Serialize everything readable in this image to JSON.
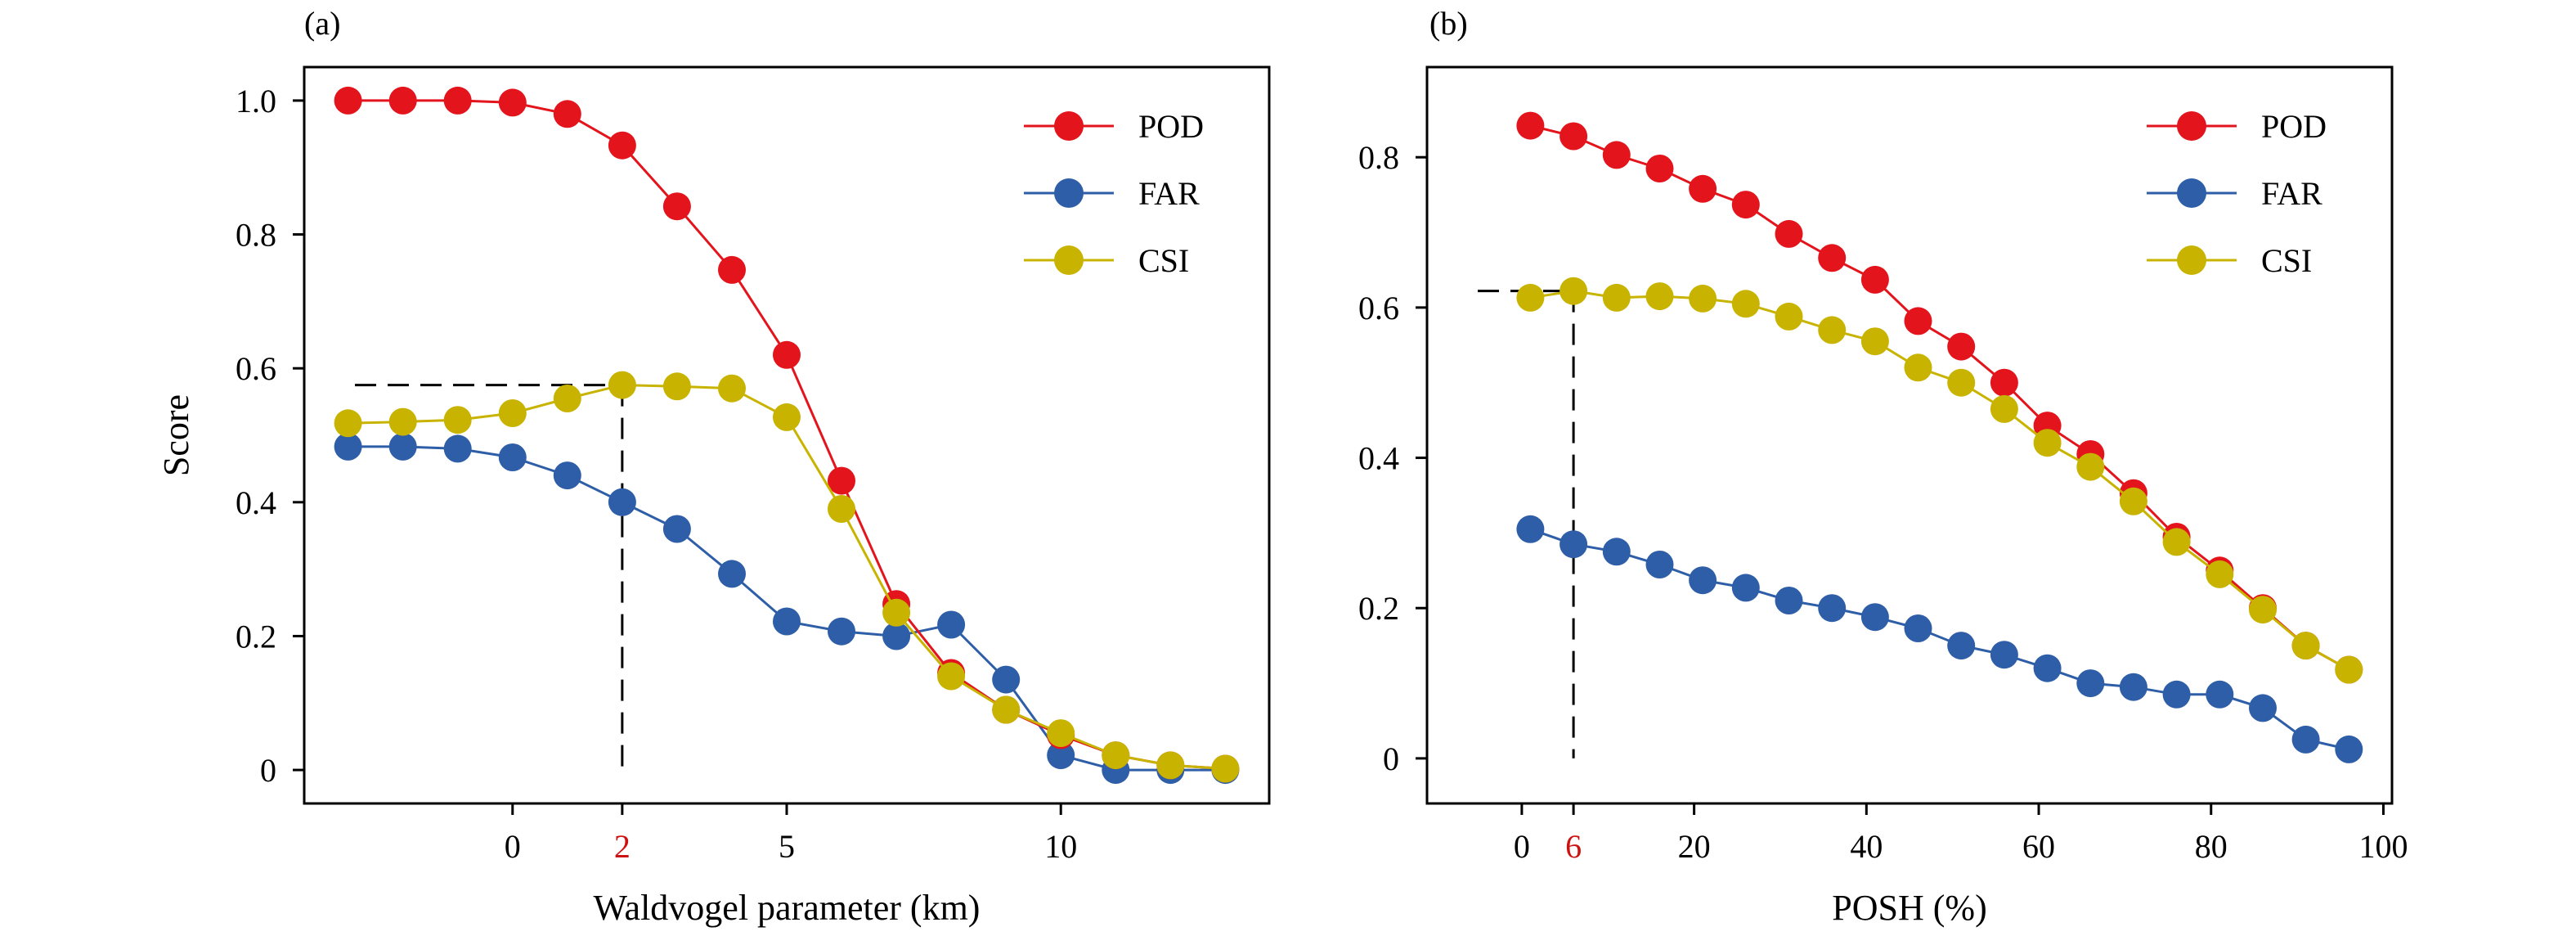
{
  "chart_data": [
    {
      "type": "line",
      "panel_label": "(a)",
      "xlabel": "Waldvogel parameter (km)",
      "ylabel": "Score",
      "xlim": [
        -3.8,
        13.8
      ],
      "ylim": [
        -0.05,
        1.05
      ],
      "xticks": [
        0,
        2,
        5,
        10
      ],
      "xtick_labels": [
        "0",
        "2",
        "5",
        "10"
      ],
      "highlight_xtick": "2",
      "yticks": [
        0,
        0.2,
        0.4,
        0.6,
        0.8,
        1.0
      ],
      "ytick_labels": [
        "0",
        "0.2",
        "0.4",
        "0.6",
        "0.8",
        "1.0"
      ],
      "legend_position": "top-right",
      "x": [
        -3,
        -2,
        -1,
        0,
        1,
        2,
        3,
        4,
        5,
        6,
        7,
        8,
        9,
        10,
        11,
        12,
        13
      ],
      "series": [
        {
          "name": "POD",
          "color": "#e3141c",
          "values": [
            1.0,
            1.0,
            1.0,
            0.997,
            0.98,
            0.933,
            0.842,
            0.747,
            0.62,
            0.432,
            0.248,
            0.145,
            0.09,
            0.052,
            0.022,
            0.007,
            0.002
          ]
        },
        {
          "name": "FAR",
          "color": "#2e5ea8",
          "values": [
            0.483,
            0.483,
            0.48,
            0.467,
            0.44,
            0.4,
            0.36,
            0.293,
            0.222,
            0.207,
            0.2,
            0.217,
            0.135,
            0.022,
            0.0,
            0.0,
            0.0
          ]
        },
        {
          "name": "CSI",
          "color": "#c8b400",
          "values": [
            0.518,
            0.52,
            0.523,
            0.533,
            0.555,
            0.575,
            0.573,
            0.57,
            0.527,
            0.39,
            0.235,
            0.14,
            0.09,
            0.055,
            0.022,
            0.007,
            0.002
          ]
        }
      ],
      "reference": {
        "x": 2,
        "y": 0.575
      }
    },
    {
      "type": "line",
      "panel_label": "(b)",
      "xlabel": "POSH (%)",
      "ylabel": "",
      "xlim": [
        -11,
        101
      ],
      "ylim": [
        -0.06,
        0.92
      ],
      "xticks": [
        0,
        6,
        20,
        40,
        60,
        80,
        100
      ],
      "xtick_labels": [
        "0",
        "6",
        "20",
        "40",
        "60",
        "80",
        "100"
      ],
      "highlight_xtick": "6",
      "yticks": [
        0,
        0.2,
        0.4,
        0.6,
        0.8
      ],
      "ytick_labels": [
        "0",
        "0.2",
        "0.4",
        "0.6",
        "0.8"
      ],
      "legend_position": "top-right",
      "x": [
        1,
        6,
        11,
        16,
        21,
        26,
        31,
        36,
        41,
        46,
        51,
        56,
        61,
        66,
        71,
        76,
        81,
        86,
        91,
        96
      ],
      "series": [
        {
          "name": "POD",
          "color": "#e3141c",
          "values": [
            0.842,
            0.828,
            0.803,
            0.785,
            0.758,
            0.737,
            0.698,
            0.666,
            0.637,
            0.582,
            0.548,
            0.5,
            0.443,
            0.405,
            0.353,
            0.295,
            0.25,
            0.2,
            0.15,
            0.118
          ]
        },
        {
          "name": "FAR",
          "color": "#2e5ea8",
          "values": [
            0.305,
            0.285,
            0.275,
            0.258,
            0.237,
            0.227,
            0.21,
            0.2,
            0.188,
            0.173,
            0.15,
            0.138,
            0.12,
            0.1,
            0.095,
            0.085,
            0.085,
            0.067,
            0.025,
            0.012
          ]
        },
        {
          "name": "CSI",
          "color": "#c8b400",
          "values": [
            0.613,
            0.622,
            0.613,
            0.615,
            0.612,
            0.605,
            0.588,
            0.57,
            0.555,
            0.52,
            0.5,
            0.465,
            0.42,
            0.388,
            0.342,
            0.288,
            0.245,
            0.198,
            0.15,
            0.118
          ]
        }
      ],
      "reference": {
        "x": 6,
        "y": 0.622
      }
    }
  ]
}
